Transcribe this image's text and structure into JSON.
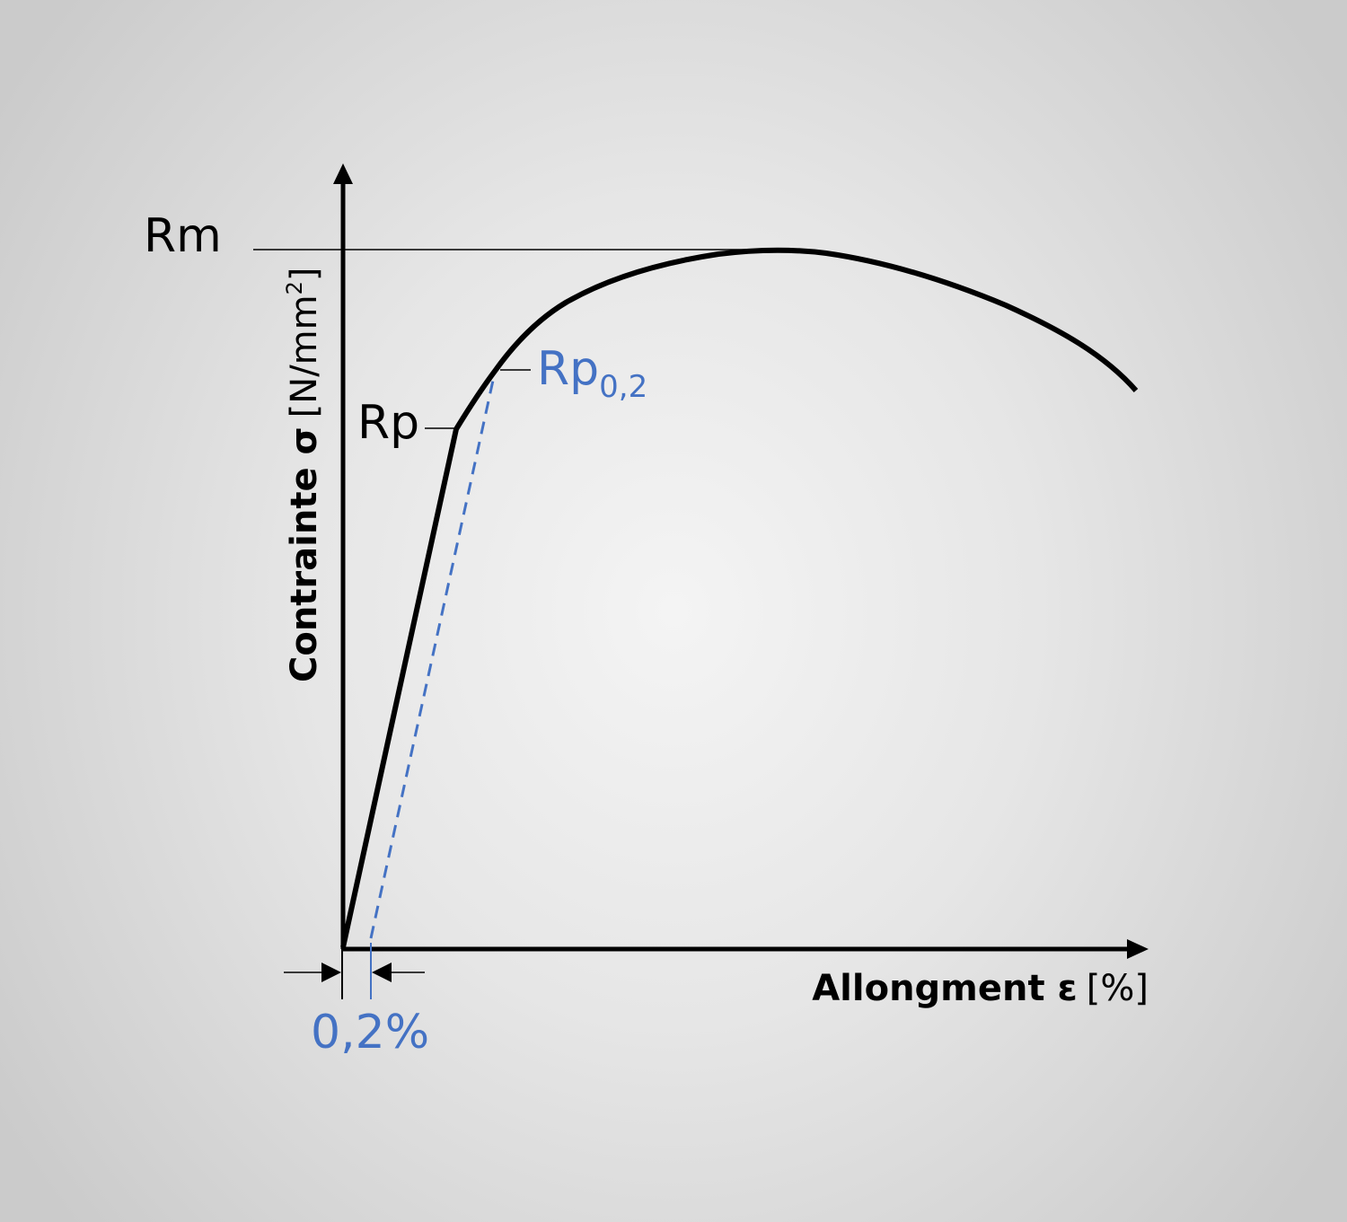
{
  "labels": {
    "rm": "Rm",
    "rp": "Rp",
    "rp02_main": "Rp",
    "rp02_sub": "0,2",
    "offset": "0,2%",
    "y_axis_bold": "Contrainte σ",
    "y_axis_unit": "[N/mm",
    "y_axis_sup": "2",
    "y_axis_close": "]",
    "x_axis_bold": "Allongment ε",
    "x_axis_unit": "[%]"
  },
  "colors": {
    "curve": "#000000",
    "offset_line": "#4472c4",
    "text": "#000000",
    "accent_text": "#4472c4"
  }
}
